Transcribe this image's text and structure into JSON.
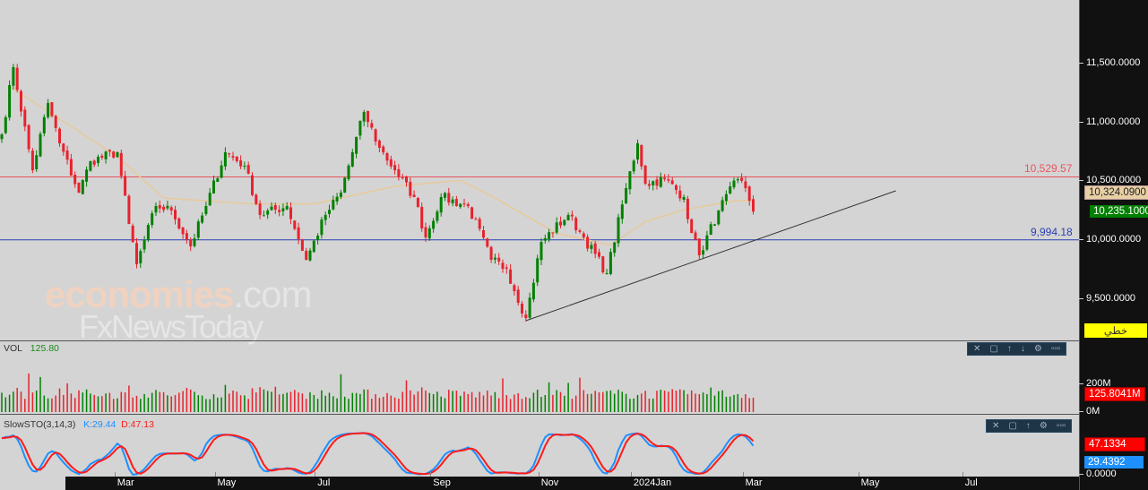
{
  "price_axis": {
    "labels": [
      {
        "value": 11500,
        "text": "11,500.0000"
      },
      {
        "value": 11000,
        "text": "11,000.0000"
      },
      {
        "value": 10500,
        "text": "10,500.0000"
      },
      {
        "value": 10000,
        "text": "10,000.0000"
      },
      {
        "value": 9500,
        "text": "9,500.0000"
      }
    ],
    "ma_badge": "10,324.0900",
    "last_price_badge": "10,235.1000",
    "chart_type_button": "خطي"
  },
  "horizontal_lines": [
    {
      "value": 10529.57,
      "label": "10,529.57",
      "color": "#e8555f"
    },
    {
      "value": 9994.18,
      "label": "9,994.18",
      "color": "#2a3fb0"
    }
  ],
  "trendline": {
    "from": [
      136,
      9307
    ],
    "to": [
      232,
      10411
    ],
    "color": "#333333"
  },
  "price_series": {
    "anchors_index": [
      0,
      3,
      8,
      12,
      15,
      20,
      23,
      30,
      33,
      35,
      40,
      44,
      49,
      53,
      58,
      63,
      67,
      74,
      79,
      84,
      88,
      94,
      98,
      102,
      107,
      110,
      114,
      121,
      127,
      131,
      136,
      140,
      147,
      151,
      157,
      162,
      165,
      167,
      172,
      177,
      179,
      181,
      186,
      191,
      193,
      195
    ],
    "anchors_close": [
      10891,
      11462,
      10586,
      11157,
      10815,
      10396,
      10662,
      10739,
      10129,
      9787,
      10282,
      10244,
      9939,
      10282,
      10739,
      10624,
      10206,
      10282,
      9825,
      10206,
      10396,
      11081,
      10777,
      10586,
      10358,
      10015,
      10358,
      10282,
      9825,
      9749,
      9330,
      9977,
      10206,
      10015,
      9711,
      10434,
      10815,
      10472,
      10510,
      10358,
      10053,
      9863,
      10244,
      10510,
      10434,
      10235
    ],
    "ma_index": [
      2,
      30,
      42,
      65,
      81,
      102,
      119,
      128,
      144,
      158,
      167,
      177,
      191,
      195
    ],
    "ma_value": [
      11300,
      10700,
      10350,
      10300,
      10300,
      10450,
      10500,
      10350,
      10050,
      9950,
      10150,
      10250,
      10330,
      10324
    ],
    "up_color": "#008000",
    "down_color": "#e8222d",
    "ma_color": "#e8c99a"
  },
  "volume_panel": {
    "label": "VOL",
    "value": "125.80",
    "axis_labels": [
      "200M",
      "0M"
    ],
    "last_badge": "125.8041M"
  },
  "stochastic_panel": {
    "label": "SlowSTO(3,14,3)",
    "k_label": "K:29.44",
    "d_label": "D:47.13",
    "d_badge": "47.1334",
    "k_badge": "29.4392",
    "axis_label": "0.0000",
    "k_color": "#1e90ff",
    "d_color": "#ff1a1a"
  },
  "toolbar_icons": [
    "close-icon",
    "maximize-icon",
    "move-up-icon",
    "move-down-icon",
    "settings-icon",
    "more-icon"
  ],
  "x_axis": [
    {
      "text": "Mar",
      "index": 29
    },
    {
      "text": "May",
      "index": 55
    },
    {
      "text": "Jul",
      "index": 81
    },
    {
      "text": "Sep",
      "index": 111
    },
    {
      "text": "Nov",
      "index": 139
    },
    {
      "text": "2024Jan",
      "index": 163
    },
    {
      "text": "Mar",
      "index": 192
    },
    {
      "text": "May",
      "index": 222
    },
    {
      "text": "Jul",
      "index": 249
    }
  ],
  "watermark": {
    "line1": "economies",
    "line1b": ".com",
    "line2": "FxNewsToday"
  }
}
